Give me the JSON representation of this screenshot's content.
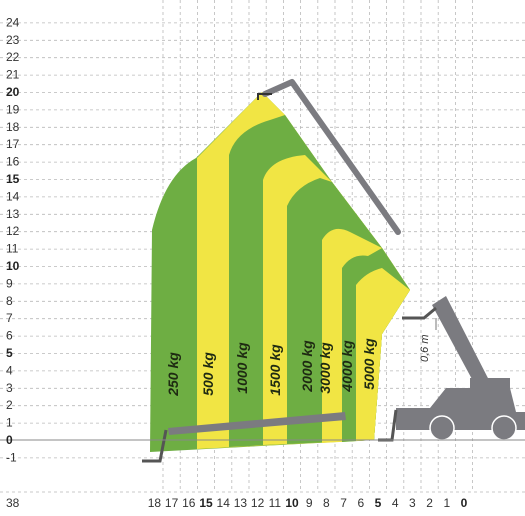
{
  "chart_data": {
    "type": "load-chart",
    "y_axis": {
      "min": -1,
      "max": 24,
      "ticks": [
        {
          "label": "24",
          "value": 24,
          "bold": false
        },
        {
          "label": "23",
          "value": 23,
          "bold": false
        },
        {
          "label": "22",
          "value": 22,
          "bold": false
        },
        {
          "label": "21",
          "value": 21,
          "bold": false
        },
        {
          "label": "20",
          "value": 20,
          "bold": true
        },
        {
          "label": "19",
          "value": 19,
          "bold": false
        },
        {
          "label": "18",
          "value": 18,
          "bold": false
        },
        {
          "label": "17",
          "value": 17,
          "bold": false
        },
        {
          "label": "16",
          "value": 16,
          "bold": false
        },
        {
          "label": "15",
          "value": 15,
          "bold": true
        },
        {
          "label": "14",
          "value": 14,
          "bold": false
        },
        {
          "label": "13",
          "value": 13,
          "bold": false
        },
        {
          "label": "12",
          "value": 12,
          "bold": false
        },
        {
          "label": "11",
          "value": 11,
          "bold": false
        },
        {
          "label": "10",
          "value": 10,
          "bold": true
        },
        {
          "label": "9",
          "value": 9,
          "bold": false
        },
        {
          "label": "8",
          "value": 8,
          "bold": false
        },
        {
          "label": "7",
          "value": 7,
          "bold": false
        },
        {
          "label": "6",
          "value": 6,
          "bold": false
        },
        {
          "label": "5",
          "value": 5,
          "bold": true
        },
        {
          "label": "4",
          "value": 4,
          "bold": false
        },
        {
          "label": "3",
          "value": 3,
          "bold": false
        },
        {
          "label": "2",
          "value": 2,
          "bold": false
        },
        {
          "label": "1",
          "value": 1,
          "bold": false
        },
        {
          "label": "0",
          "value": 0,
          "bold": true
        },
        {
          "label": "-1",
          "value": -1,
          "bold": false
        }
      ]
    },
    "x_axis": {
      "min": 0,
      "max": 18,
      "corner_label": "38",
      "ticks": [
        {
          "label": "18",
          "value": 18,
          "bold": false
        },
        {
          "label": "17",
          "value": 17,
          "bold": false
        },
        {
          "label": "16",
          "value": 16,
          "bold": false
        },
        {
          "label": "15",
          "value": 15,
          "bold": true
        },
        {
          "label": "14",
          "value": 14,
          "bold": false
        },
        {
          "label": "13",
          "value": 13,
          "bold": false
        },
        {
          "label": "12",
          "value": 12,
          "bold": false
        },
        {
          "label": "11",
          "value": 11,
          "bold": false
        },
        {
          "label": "10",
          "value": 10,
          "bold": true
        },
        {
          "label": "9",
          "value": 9,
          "bold": false
        },
        {
          "label": "8",
          "value": 8,
          "bold": false
        },
        {
          "label": "7",
          "value": 7,
          "bold": false
        },
        {
          "label": "6",
          "value": 6,
          "bold": false
        },
        {
          "label": "5",
          "value": 5,
          "bold": true
        },
        {
          "label": "4",
          "value": 4,
          "bold": false
        },
        {
          "label": "3",
          "value": 3,
          "bold": false
        },
        {
          "label": "2",
          "value": 2,
          "bold": false
        },
        {
          "label": "1",
          "value": 1,
          "bold": false
        },
        {
          "label": "0",
          "value": 0,
          "bold": true
        }
      ]
    },
    "grid": true,
    "zone_colors": {
      "green": "#6eae43",
      "yellow": "#f1e544"
    },
    "zones": [
      {
        "label": "250 kg"
      },
      {
        "label": "500 kg"
      },
      {
        "label": "1000 kg"
      },
      {
        "label": "1500 kg"
      },
      {
        "label": "2000 kg"
      },
      {
        "label": "3000 kg"
      },
      {
        "label": "4000 kg"
      },
      {
        "label": "5000 kg"
      }
    ],
    "annotations": [
      {
        "text": "0,6 m"
      }
    ]
  }
}
